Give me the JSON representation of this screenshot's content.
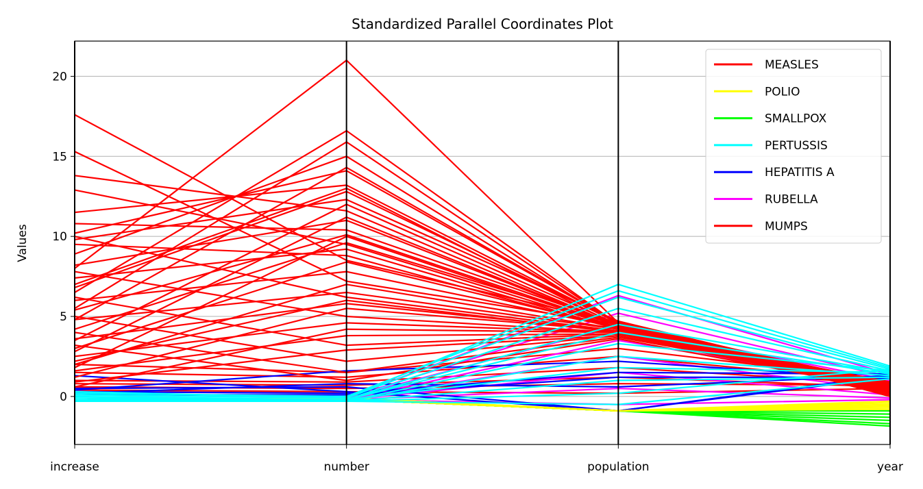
{
  "chart_data": {
    "type": "parallel_coordinates",
    "title": "Standardized Parallel Coordinates Plot",
    "xlabel": "",
    "ylabel": "Values",
    "axes": [
      "increase",
      "number",
      "population",
      "year"
    ],
    "ylim": [
      -3,
      22.2
    ],
    "yticks": [
      0,
      5,
      10,
      15,
      20
    ],
    "grid": "horizontal",
    "legend_position": "top-right",
    "series": [
      {
        "name": "MEASLES",
        "color": "#ff0000",
        "samples": [
          [
            17.6,
            8.5,
            4.6,
            0.0
          ],
          [
            15.3,
            7.2,
            4.5,
            0.2
          ],
          [
            13.8,
            11.6,
            4.4,
            0.3
          ],
          [
            12.9,
            9.5,
            4.3,
            0.1
          ],
          [
            11.5,
            13.2,
            4.6,
            0.4
          ],
          [
            10.8,
            10.4,
            4.5,
            0.5
          ],
          [
            10.2,
            14.1,
            4.6,
            0.3
          ],
          [
            9.8,
            12.3,
            4.7,
            0.6
          ],
          [
            8.9,
            15.0,
            4.5,
            0.4
          ],
          [
            8.2,
            11.0,
            4.4,
            0.2
          ],
          [
            7.4,
            9.2,
            4.2,
            0.5
          ],
          [
            6.8,
            12.8,
            4.6,
            0.7
          ],
          [
            6.0,
            7.8,
            4.3,
            0.3
          ],
          [
            5.4,
            10.1,
            4.4,
            0.6
          ],
          [
            4.8,
            6.5,
            4.2,
            0.2
          ],
          [
            4.2,
            9.6,
            4.5,
            0.8
          ],
          [
            3.6,
            5.8,
            4.1,
            0.4
          ],
          [
            3.0,
            8.4,
            4.3,
            0.6
          ],
          [
            2.5,
            4.6,
            4.0,
            0.3
          ],
          [
            2.0,
            7.0,
            4.2,
            0.9
          ],
          [
            1.6,
            3.8,
            3.9,
            0.5
          ],
          [
            1.2,
            5.5,
            4.1,
            0.7
          ],
          [
            0.9,
            2.9,
            3.8,
            0.4
          ],
          [
            0.6,
            4.2,
            4.0,
            0.8
          ],
          [
            8.0,
            21.0,
            4.6,
            0.6
          ],
          [
            6.5,
            16.6,
            4.5,
            0.5
          ],
          [
            5.5,
            15.9,
            4.5,
            0.4
          ],
          [
            4.8,
            14.3,
            4.6,
            0.7
          ],
          [
            7.0,
            13.0,
            4.4,
            0.5
          ],
          [
            3.5,
            12.0,
            4.5,
            0.3
          ],
          [
            2.8,
            11.2,
            4.4,
            0.6
          ],
          [
            1.8,
            10.0,
            4.3,
            0.5
          ],
          [
            9.5,
            8.8,
            4.2,
            0.2
          ],
          [
            10.0,
            6.2,
            4.1,
            0.4
          ],
          [
            7.8,
            5.0,
            4.0,
            0.3
          ],
          [
            6.2,
            3.2,
            3.9,
            0.6
          ],
          [
            5.0,
            2.2,
            3.8,
            0.5
          ],
          [
            4.0,
            1.5,
            3.7,
            0.7
          ],
          [
            3.2,
            1.0,
            3.6,
            0.4
          ],
          [
            2.2,
            6.0,
            4.0,
            0.8
          ]
        ]
      },
      {
        "name": "POLIO",
        "color": "#ffff00",
        "samples": [
          [
            -0.2,
            -0.1,
            -0.9,
            -0.3
          ],
          [
            -0.2,
            -0.1,
            -0.9,
            -0.4
          ],
          [
            -0.2,
            -0.2,
            -0.9,
            -0.5
          ],
          [
            -0.3,
            -0.2,
            -0.9,
            -0.6
          ],
          [
            -0.3,
            -0.1,
            -0.9,
            -0.7
          ],
          [
            -0.3,
            -0.2,
            -0.9,
            -0.8
          ]
        ]
      },
      {
        "name": "SMALLPOX",
        "color": "#00ff00",
        "samples": [
          [
            -0.3,
            -0.2,
            -0.9,
            -0.9
          ],
          [
            -0.3,
            -0.2,
            -0.9,
            -1.1
          ],
          [
            -0.3,
            -0.2,
            -0.9,
            -1.3
          ],
          [
            -0.3,
            -0.2,
            -0.9,
            -1.5
          ],
          [
            -0.3,
            -0.2,
            -0.9,
            -1.7
          ],
          [
            -0.3,
            -0.2,
            -0.9,
            -1.85
          ]
        ]
      },
      {
        "name": "PERTUSSIS",
        "color": "#00ffff",
        "samples": [
          [
            0.3,
            -0.1,
            7.0,
            1.9
          ],
          [
            0.2,
            0.0,
            6.6,
            1.8
          ],
          [
            0.1,
            -0.1,
            6.2,
            1.7
          ],
          [
            0.0,
            -0.2,
            5.5,
            1.6
          ],
          [
            -0.1,
            -0.2,
            4.5,
            1.5
          ],
          [
            -0.2,
            -0.2,
            4.0,
            1.4
          ],
          [
            -0.3,
            -0.3,
            3.3,
            1.6
          ],
          [
            -0.3,
            -0.3,
            2.5,
            1.3
          ],
          [
            -0.2,
            -0.2,
            1.8,
            1.5
          ],
          [
            -0.3,
            -0.3,
            1.0,
            1.2
          ],
          [
            -0.3,
            -0.3,
            0.2,
            1.7
          ],
          [
            -0.3,
            -0.3,
            -0.5,
            1.1
          ]
        ]
      },
      {
        "name": "HEPATITIS A",
        "color": "#0000ff",
        "samples": [
          [
            1.3,
            0.3,
            -0.9,
            1.3
          ],
          [
            0.5,
            0.6,
            -0.9,
            1.2
          ],
          [
            0.3,
            0.2,
            1.5,
            1.4
          ],
          [
            0.2,
            0.8,
            0.6,
            1.3
          ],
          [
            0.4,
            1.6,
            2.2,
            1.1
          ],
          [
            0.1,
            0.1,
            1.2,
            1.2
          ]
        ]
      },
      {
        "name": "RUBELLA",
        "color": "#ff00ff",
        "samples": [
          [
            -0.2,
            -0.1,
            6.3,
            1.4
          ],
          [
            -0.2,
            -0.1,
            5.2,
            1.2
          ],
          [
            -0.2,
            -0.1,
            4.4,
            1.0
          ],
          [
            -0.2,
            -0.2,
            3.5,
            0.7
          ],
          [
            -0.3,
            -0.2,
            2.5,
            0.4
          ],
          [
            -0.3,
            -0.2,
            1.5,
            0.1
          ],
          [
            -0.3,
            -0.2,
            0.5,
            -0.1
          ],
          [
            -0.3,
            -0.2,
            -0.5,
            -0.2
          ]
        ]
      },
      {
        "name": "MUMPS",
        "color": "#ff0000",
        "samples": [
          [
            1.5,
            1.2,
            2.5,
            0.9
          ],
          [
            1.0,
            0.9,
            1.8,
            0.8
          ],
          [
            0.8,
            0.7,
            1.2,
            0.6
          ],
          [
            0.6,
            0.5,
            0.8,
            0.7
          ],
          [
            2.0,
            1.5,
            3.0,
            1.0
          ],
          [
            0.4,
            0.3,
            0.2,
            0.5
          ]
        ]
      }
    ]
  }
}
